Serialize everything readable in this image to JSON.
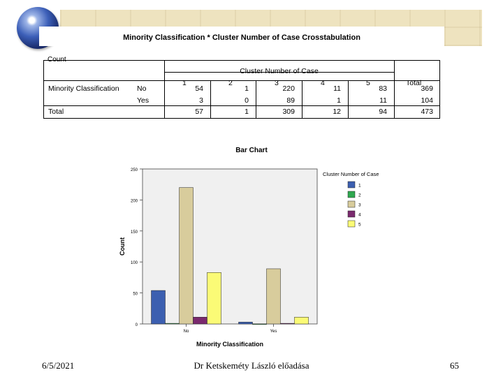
{
  "crosstab": {
    "title": "Minority Classification * Cluster Number of Case Crosstabulation",
    "count_label": "Count",
    "col_group_label": "Cluster Number of Case",
    "columns": [
      "1",
      "2",
      "3",
      "4",
      "5"
    ],
    "total_label": "Total",
    "row_group_label": "Minority Classification",
    "rows": [
      {
        "label": "No",
        "values": [
          "54",
          "1",
          "220",
          "11",
          "83"
        ],
        "total": "369"
      },
      {
        "label": "Yes",
        "values": [
          "3",
          "0",
          "89",
          "1",
          "11"
        ],
        "total": "104"
      }
    ],
    "totals_row": {
      "label": "Total",
      "values": [
        "57",
        "1",
        "309",
        "12",
        "94"
      ],
      "total": "473"
    }
  },
  "chart_data": {
    "type": "bar",
    "title": "Bar Chart",
    "xlabel": "Minority Classification",
    "ylabel": "Count",
    "categories": [
      "No",
      "Yes"
    ],
    "series": [
      {
        "name": "1",
        "values": [
          54,
          3
        ],
        "color": "#3c5fb0"
      },
      {
        "name": "2",
        "values": [
          1,
          0
        ],
        "color": "#2fa84f"
      },
      {
        "name": "3",
        "values": [
          220,
          89
        ],
        "color": "#d8cc9c"
      },
      {
        "name": "4",
        "values": [
          11,
          1
        ],
        "color": "#7a2a6e"
      },
      {
        "name": "5",
        "values": [
          83,
          11
        ],
        "color": "#fbfb76"
      }
    ],
    "ylim": [
      0,
      250
    ],
    "yticks": [
      0,
      50,
      100,
      150,
      200,
      250
    ],
    "legend_title": "Cluster Number of Case",
    "legend_position": "right",
    "grid": false
  },
  "footer": {
    "date": "6/5/2021",
    "center": "Dr Ketskeméty László előadása",
    "page": "65"
  }
}
